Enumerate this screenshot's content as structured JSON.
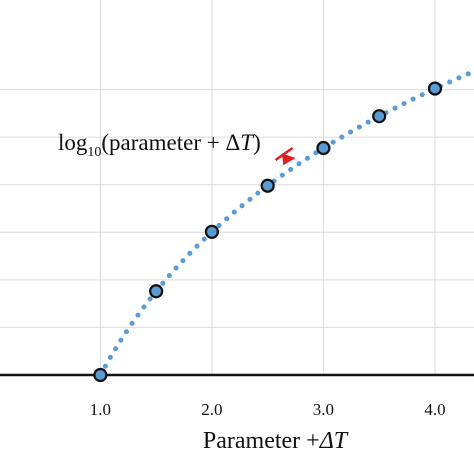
{
  "chart_data": {
    "type": "line",
    "xlabel": "Parameter +",
    "xlabel_symbol": "ΔT",
    "x_ticks": [
      "1.0",
      "2.0",
      "3.0",
      "4.0"
    ],
    "x_tick_values": [
      1.0,
      2.0,
      3.0,
      4.0
    ],
    "xlim": [
      0.1,
      4.35
    ],
    "ylim": [
      0,
      0.7
    ],
    "y_gridlines": [
      0,
      0.1,
      0.2,
      0.3,
      0.4,
      0.5,
      0.6
    ],
    "grid": true,
    "series": [
      {
        "style": "dotted",
        "color": "#5b9bd5",
        "x": [
          1.0,
          1.1,
          1.2,
          1.3,
          1.4,
          1.5,
          1.6,
          1.7,
          1.8,
          1.9,
          2.0,
          2.2,
          2.4,
          2.6,
          2.8,
          3.0,
          3.2,
          3.4,
          3.6,
          3.8,
          4.0,
          4.2,
          4.35
        ],
        "y": [
          0.0,
          0.0414,
          0.0792,
          0.1139,
          0.1461,
          0.1761,
          0.2041,
          0.2304,
          0.2553,
          0.2788,
          0.301,
          0.3424,
          0.3802,
          0.415,
          0.4472,
          0.4771,
          0.5051,
          0.5315,
          0.5563,
          0.5798,
          0.6021,
          0.6232,
          0.6385
        ]
      }
    ],
    "markers": {
      "x": [
        1.0,
        1.5,
        2.0,
        2.5,
        3.0,
        3.5,
        4.0
      ],
      "y": [
        0.0,
        0.1761,
        0.301,
        0.3979,
        0.4771,
        0.5441,
        0.6021
      ],
      "fill": "#5b9bd5",
      "edge": "#111111"
    },
    "annotation": {
      "prefix": "log",
      "subscript": "10",
      "text": "(parameter + ",
      "delta": "Δ",
      "italic": "T",
      "suffix": ")",
      "arrow_color": "#e02020",
      "arrow_target_x": 2.75
    }
  }
}
